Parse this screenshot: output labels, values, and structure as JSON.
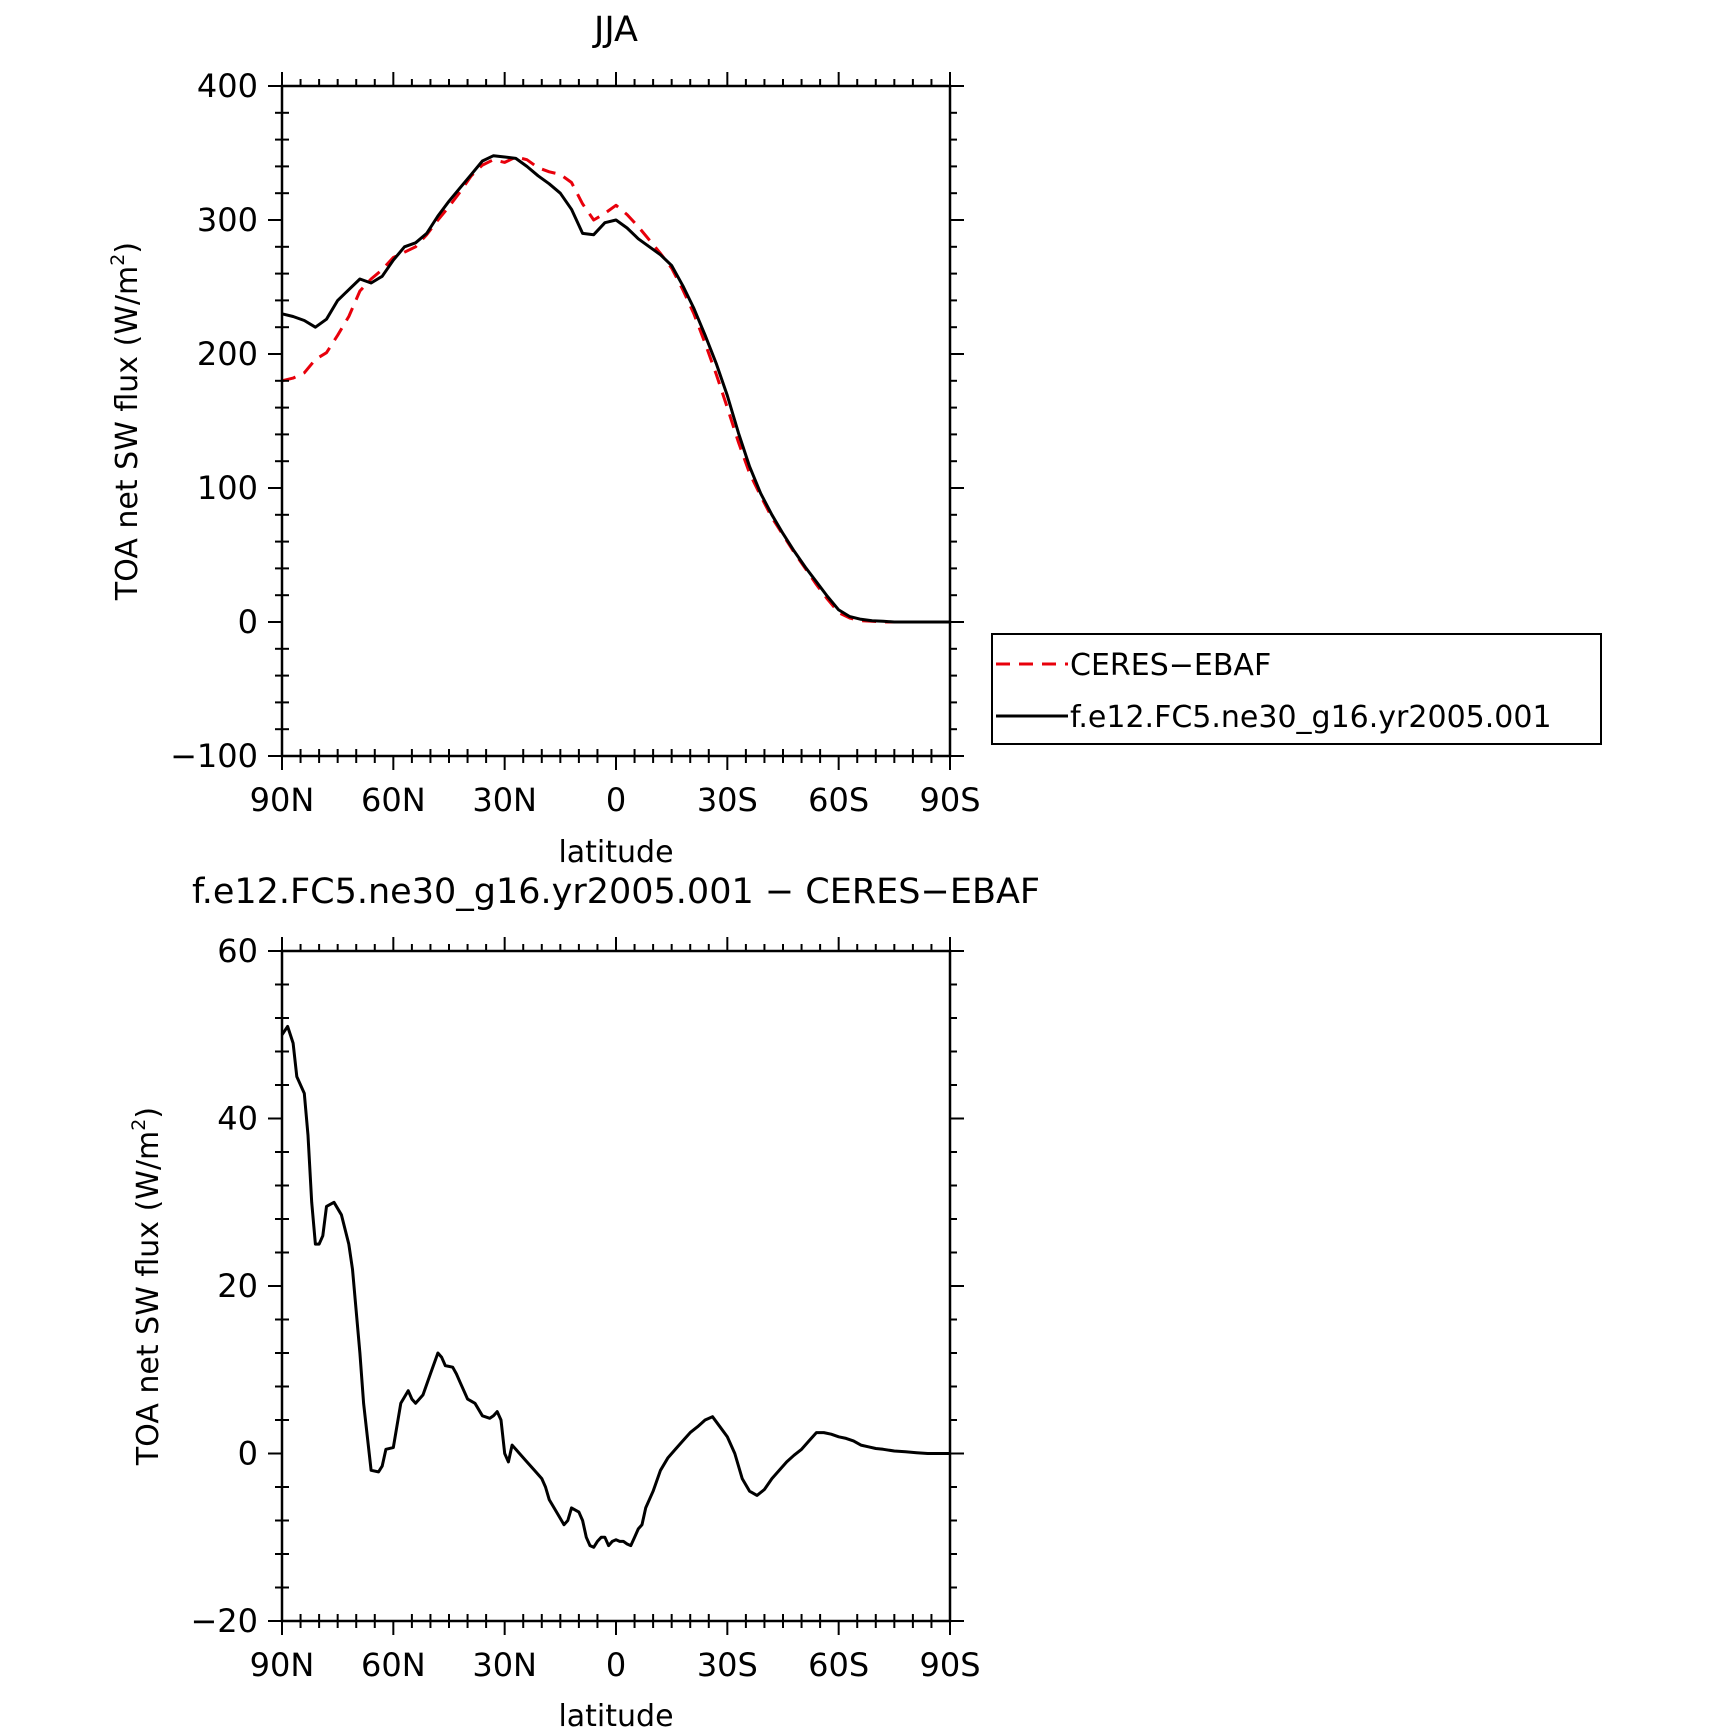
{
  "chart_data": [
    {
      "type": "line",
      "title": "JJA",
      "xlabel": "latitude",
      "ylabel": "TOA net SW flux (W/m",
      "ylabel_sup": "2",
      "ylabel_close": ")",
      "xlim": [
        90,
        -90
      ],
      "ylim": [
        -100,
        400
      ],
      "x_ticks": [
        90,
        60,
        30,
        0,
        -30,
        -60,
        -90
      ],
      "x_tick_labels": [
        "90N",
        "60N",
        "30N",
        "0",
        "30S",
        "60S",
        "90S"
      ],
      "y_ticks": [
        -100,
        0,
        100,
        200,
        300,
        400
      ],
      "y_tick_labels": [
        "−100",
        "0",
        "100",
        "200",
        "300",
        "400"
      ],
      "grid": false,
      "legend_position": "right",
      "series": [
        {
          "name": "CERES−EBAF",
          "color": "#e8000b",
          "dash": "dashed",
          "x": [
            90,
            87,
            84,
            81,
            78,
            75,
            72,
            69,
            66,
            63,
            60,
            57,
            54,
            51,
            48,
            45,
            42,
            39,
            36,
            33,
            30,
            27,
            24,
            21,
            18,
            15,
            12,
            9,
            6,
            3,
            0,
            -3,
            -6,
            -9,
            -12,
            -15,
            -18,
            -21,
            -24,
            -27,
            -30,
            -33,
            -36,
            -39,
            -42,
            -45,
            -48,
            -51,
            -54,
            -57,
            -60,
            -63,
            -66,
            -69,
            -72,
            -75,
            -78,
            -81,
            -84,
            -87,
            -90
          ],
          "y": [
            180,
            182,
            186,
            196,
            201,
            214,
            228,
            247,
            256,
            263,
            272,
            276,
            280,
            289,
            300,
            310,
            321,
            333,
            341,
            345,
            343,
            347,
            345,
            339,
            336,
            334,
            328,
            312,
            300,
            305,
            311,
            304,
            295,
            285,
            275,
            264,
            248,
            230,
            208,
            185,
            160,
            134,
            111,
            94,
            78,
            65,
            52,
            40,
            28,
            17,
            7,
            3,
            1,
            0.5,
            0,
            0,
            0,
            0,
            0,
            0,
            0
          ]
        },
        {
          "name": "f.e12.FC5.ne30_g16.yr2005.001",
          "color": "#000000",
          "dash": "solid",
          "x": [
            90,
            87,
            84,
            81,
            78,
            75,
            72,
            69,
            66,
            63,
            60,
            57,
            54,
            51,
            48,
            45,
            42,
            39,
            36,
            33,
            30,
            27,
            24,
            21,
            18,
            15,
            12,
            9,
            6,
            3,
            0,
            -3,
            -6,
            -9,
            -12,
            -15,
            -18,
            -21,
            -24,
            -27,
            -30,
            -33,
            -36,
            -39,
            -42,
            -45,
            -48,
            -51,
            -54,
            -57,
            -60,
            -63,
            -66,
            -69,
            -72,
            -75,
            -78,
            -81,
            -84,
            -87,
            -90
          ],
          "y": [
            230,
            228,
            225,
            220,
            226,
            240,
            248,
            256,
            253,
            258,
            270,
            280,
            283,
            290,
            303,
            314,
            324,
            334,
            344,
            348,
            347,
            346,
            340,
            333,
            327,
            320,
            308,
            290,
            289,
            298,
            300,
            294,
            286,
            280,
            274,
            266,
            251,
            234,
            214,
            193,
            169,
            141,
            116,
            96,
            80,
            66,
            53,
            41,
            30,
            19,
            9,
            4,
            2,
            1,
            0.5,
            0,
            0,
            0,
            0,
            0,
            0
          ]
        }
      ]
    },
    {
      "type": "line",
      "title": "f.e12.FC5.ne30_g16.yr2005.001 − CERES−EBAF",
      "xlabel": "latitude",
      "ylabel": "TOA net SW flux (W/m",
      "ylabel_sup": "2",
      "ylabel_close": ")",
      "xlim": [
        90,
        -90
      ],
      "ylim": [
        -20,
        60
      ],
      "x_ticks": [
        90,
        60,
        30,
        0,
        -30,
        -60,
        -90
      ],
      "x_tick_labels": [
        "90N",
        "60N",
        "30N",
        "0",
        "30S",
        "60S",
        "90S"
      ],
      "y_ticks": [
        -20,
        0,
        20,
        40,
        60
      ],
      "y_tick_labels": [
        "−20",
        "0",
        "20",
        "40",
        "60"
      ],
      "grid": false,
      "series": [
        {
          "color": "#000000",
          "dash": "solid",
          "x": [
            90,
            88.5,
            87,
            86,
            84,
            83,
            82,
            81,
            80,
            79,
            78,
            76,
            74,
            72,
            71,
            70,
            69,
            68,
            66,
            64,
            63,
            62,
            60,
            58,
            56,
            55,
            54,
            52,
            50,
            48,
            47,
            46,
            44,
            43,
            42,
            40,
            38,
            36,
            34,
            33,
            32,
            31,
            30,
            29,
            28,
            27,
            26,
            24,
            22,
            20,
            19,
            18,
            16,
            14,
            13,
            12,
            10,
            9,
            8,
            7,
            6,
            5,
            4,
            3,
            2,
            1,
            0,
            -1,
            -2,
            -3,
            -4,
            -5,
            -6,
            -7,
            -8,
            -10,
            -12,
            -14,
            -16,
            -18,
            -20,
            -22,
            -24,
            -26,
            -28,
            -30,
            -32,
            -34,
            -36,
            -38,
            -40,
            -42,
            -44,
            -46,
            -48,
            -50,
            -52,
            -54,
            -56,
            -58,
            -60,
            -62,
            -64,
            -66,
            -68,
            -70,
            -72,
            -75,
            -78,
            -81,
            -84,
            -87,
            -90
          ],
          "y": [
            50,
            51,
            49,
            45,
            43,
            38,
            30,
            25,
            25,
            26,
            29.5,
            30,
            28.5,
            25,
            22,
            17,
            12,
            6,
            -2,
            -2.2,
            -1.5,
            0.5,
            0.7,
            6,
            7.5,
            6.5,
            6,
            7,
            9.5,
            12,
            11.5,
            10.5,
            10.3,
            9.5,
            8.5,
            6.5,
            6,
            4.5,
            4.2,
            4.5,
            5,
            4,
            0,
            -1,
            1,
            0.5,
            0,
            -1,
            -2,
            -3,
            -4,
            -5.5,
            -7,
            -8.5,
            -8,
            -6.5,
            -7,
            -8,
            -10,
            -11,
            -11.2,
            -10.5,
            -10,
            -10,
            -11,
            -10.5,
            -10.3,
            -10.5,
            -10.5,
            -10.8,
            -11,
            -10,
            -9,
            -8.5,
            -6.5,
            -4.5,
            -2,
            -0.5,
            0.5,
            1.5,
            2.5,
            3.2,
            4,
            4.4,
            3.2,
            2,
            0,
            -3,
            -4.5,
            -5,
            -4.3,
            -3,
            -2,
            -1,
            -0.2,
            0.5,
            1.5,
            2.5,
            2.5,
            2.3,
            2,
            1.8,
            1.5,
            1,
            0.8,
            0.6,
            0.5,
            0.3,
            0.2,
            0.1,
            0,
            0,
            0
          ]
        }
      ]
    }
  ]
}
